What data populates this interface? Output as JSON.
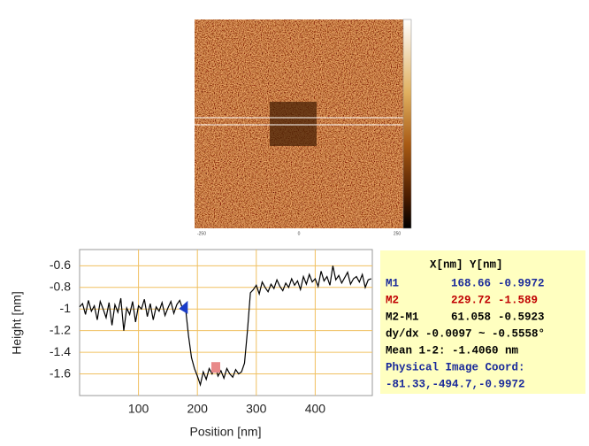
{
  "afm_image": {
    "x_tick_labels": [
      "-250",
      "0",
      "250"
    ]
  },
  "chart_data": {
    "type": "line",
    "x_label": "Position [nm]",
    "y_label": "Height [nm]",
    "x": [
      0,
      5,
      10,
      15,
      20,
      25,
      30,
      35,
      40,
      45,
      50,
      55,
      60,
      65,
      70,
      75,
      80,
      85,
      90,
      95,
      100,
      105,
      110,
      115,
      120,
      125,
      130,
      135,
      140,
      145,
      150,
      155,
      160,
      165,
      170,
      175,
      180,
      185,
      190,
      195,
      200,
      205,
      210,
      215,
      220,
      225,
      230,
      235,
      240,
      245,
      250,
      255,
      260,
      265,
      270,
      275,
      280,
      285,
      290,
      295,
      300,
      305,
      310,
      315,
      320,
      325,
      330,
      335,
      340,
      345,
      350,
      355,
      360,
      365,
      370,
      375,
      380,
      385,
      390,
      395,
      400,
      405,
      410,
      415,
      420,
      425,
      430,
      435,
      440,
      445,
      450,
      455,
      460,
      465,
      470,
      475,
      480,
      485,
      490,
      495
    ],
    "values": [
      -0.98,
      -0.95,
      -1.05,
      -0.92,
      -1.02,
      -0.97,
      -1.1,
      -0.93,
      -1.0,
      -1.08,
      -0.94,
      -1.15,
      -0.96,
      -1.03,
      -0.9,
      -1.2,
      -0.99,
      -1.05,
      -0.93,
      -1.12,
      -0.97,
      -1.0,
      -0.91,
      -1.07,
      -0.95,
      -1.1,
      -0.98,
      -1.02,
      -0.94,
      -1.06,
      -0.99,
      -0.93,
      -1.04,
      -0.96,
      -0.92,
      -1.0,
      -1.0,
      -1.25,
      -1.45,
      -1.55,
      -1.62,
      -1.7,
      -1.58,
      -1.65,
      -1.55,
      -1.6,
      -1.52,
      -1.62,
      -1.57,
      -1.64,
      -1.55,
      -1.6,
      -1.63,
      -1.56,
      -1.6,
      -1.58,
      -1.5,
      -1.2,
      -0.85,
      -0.82,
      -0.78,
      -0.86,
      -0.75,
      -0.8,
      -0.84,
      -0.77,
      -0.81,
      -0.73,
      -0.79,
      -0.83,
      -0.76,
      -0.8,
      -0.72,
      -0.78,
      -0.74,
      -0.82,
      -0.7,
      -0.77,
      -0.68,
      -0.75,
      -0.72,
      -0.79,
      -0.65,
      -0.74,
      -0.7,
      -0.78,
      -0.6,
      -0.73,
      -0.69,
      -0.76,
      -0.71,
      -0.66,
      -0.77,
      -0.72,
      -0.7,
      -0.75,
      -0.68,
      -0.8,
      -0.73,
      -0.72
    ],
    "color": "#000000",
    "xlim": [
      0,
      497
    ],
    "ylim": [
      -1.8,
      -0.45
    ],
    "xticks": [
      100,
      200,
      300,
      400
    ],
    "yticks": [
      -0.6,
      -0.8,
      -1,
      -1.2,
      -1.4,
      -1.6
    ],
    "grid": true,
    "markers": [
      {
        "name": "M1",
        "x": 168.66,
        "y": -0.9972,
        "color": "#1a3cc8"
      },
      {
        "name": "M2",
        "x": 229.72,
        "y": -1.589,
        "color": "#e88a8a"
      }
    ]
  },
  "panel": {
    "header": "X[nm]  Y[nm]",
    "delta_name": "M2-M1",
    "delta": [
      61.058,
      -0.5923
    ],
    "slope": "dy/dx -0.0097 ~ -0.5558°",
    "mean": "Mean 1-2: -1.4060 nm",
    "coord_title": "Physical Image Coord:",
    "coord": "-81.33,-494.7,-0.9972"
  }
}
